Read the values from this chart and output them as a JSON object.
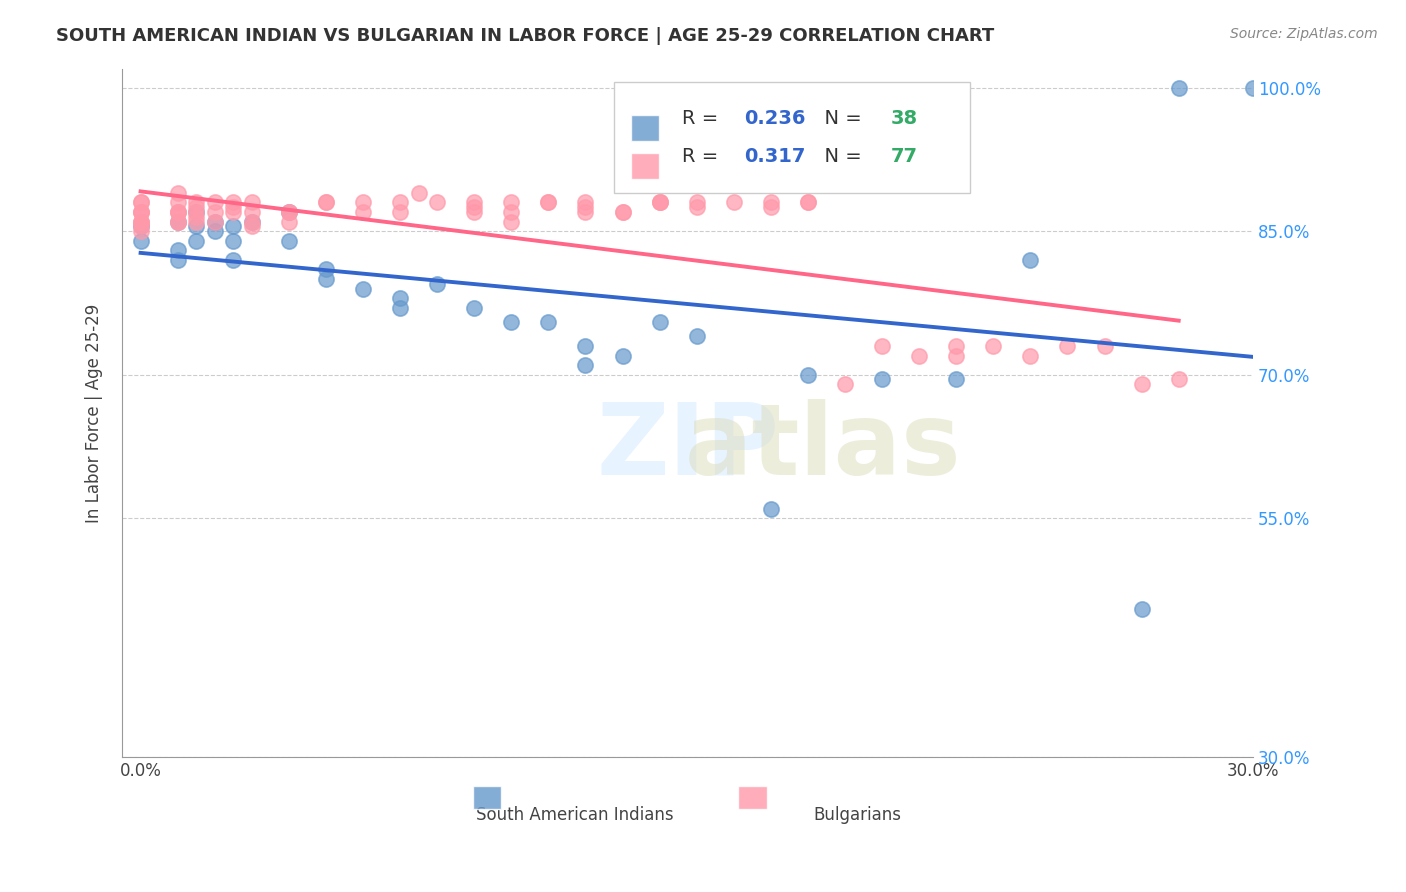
{
  "title": "SOUTH AMERICAN INDIAN VS BULGARIAN IN LABOR FORCE | AGE 25-29 CORRELATION CHART",
  "source": "Source: ZipAtlas.com",
  "xlabel": "",
  "ylabel": "In Labor Force | Age 25-29",
  "xlim": [
    0.0,
    0.3
  ],
  "ylim": [
    0.3,
    1.02
  ],
  "x_ticks": [
    0.0,
    0.3
  ],
  "x_tick_labels": [
    "0.0%",
    "30.0%"
  ],
  "y_ticks": [
    0.85,
    1.0
  ],
  "watermark": "ZIPatlas",
  "legend_blue_R": "0.236",
  "legend_blue_N": "38",
  "legend_pink_R": "0.317",
  "legend_pink_N": "77",
  "blue_color": "#6699CC",
  "pink_color": "#FF99AA",
  "blue_line_color": "#3366CC",
  "pink_line_color": "#FF6688",
  "grid_color": "#CCCCCC",
  "blue_scatter_x": [
    0.0,
    0.0,
    0.01,
    0.01,
    0.01,
    0.015,
    0.015,
    0.015,
    0.02,
    0.02,
    0.025,
    0.025,
    0.025,
    0.03,
    0.04,
    0.04,
    0.05,
    0.05,
    0.06,
    0.07,
    0.07,
    0.08,
    0.09,
    0.1,
    0.11,
    0.12,
    0.12,
    0.13,
    0.14,
    0.15,
    0.17,
    0.18,
    0.2,
    0.22,
    0.24,
    0.27,
    0.28,
    0.3
  ],
  "blue_scatter_y": [
    0.84,
    0.855,
    0.86,
    0.83,
    0.82,
    0.87,
    0.855,
    0.84,
    0.86,
    0.85,
    0.855,
    0.84,
    0.82,
    0.86,
    0.87,
    0.84,
    0.81,
    0.8,
    0.79,
    0.78,
    0.77,
    0.795,
    0.77,
    0.755,
    0.755,
    0.73,
    0.71,
    0.72,
    0.755,
    0.74,
    0.56,
    0.7,
    0.695,
    0.695,
    0.82,
    0.455,
    1.0,
    1.0
  ],
  "pink_scatter_x": [
    0.0,
    0.0,
    0.0,
    0.0,
    0.0,
    0.0,
    0.0,
    0.0,
    0.0,
    0.0,
    0.01,
    0.01,
    0.01,
    0.01,
    0.01,
    0.01,
    0.01,
    0.015,
    0.015,
    0.015,
    0.015,
    0.015,
    0.02,
    0.02,
    0.02,
    0.025,
    0.025,
    0.025,
    0.03,
    0.03,
    0.03,
    0.03,
    0.04,
    0.04,
    0.04,
    0.05,
    0.05,
    0.06,
    0.06,
    0.07,
    0.07,
    0.075,
    0.08,
    0.09,
    0.09,
    0.09,
    0.1,
    0.1,
    0.1,
    0.11,
    0.11,
    0.12,
    0.12,
    0.12,
    0.13,
    0.13,
    0.14,
    0.14,
    0.14,
    0.15,
    0.15,
    0.16,
    0.17,
    0.17,
    0.18,
    0.18,
    0.19,
    0.2,
    0.21,
    0.22,
    0.22,
    0.23,
    0.24,
    0.25,
    0.26,
    0.27,
    0.28
  ],
  "pink_scatter_y": [
    0.88,
    0.87,
    0.86,
    0.87,
    0.86,
    0.85,
    0.855,
    0.86,
    0.87,
    0.88,
    0.86,
    0.87,
    0.87,
    0.86,
    0.87,
    0.88,
    0.89,
    0.88,
    0.875,
    0.87,
    0.86,
    0.865,
    0.88,
    0.87,
    0.86,
    0.88,
    0.875,
    0.87,
    0.88,
    0.87,
    0.86,
    0.855,
    0.87,
    0.87,
    0.86,
    0.88,
    0.88,
    0.87,
    0.88,
    0.87,
    0.88,
    0.89,
    0.88,
    0.88,
    0.875,
    0.87,
    0.86,
    0.87,
    0.88,
    0.88,
    0.88,
    0.87,
    0.88,
    0.875,
    0.87,
    0.87,
    0.88,
    0.88,
    0.88,
    0.88,
    0.875,
    0.88,
    0.88,
    0.875,
    0.88,
    0.88,
    0.69,
    0.73,
    0.72,
    0.73,
    0.72,
    0.73,
    0.72,
    0.73,
    0.73,
    0.69,
    0.695
  ]
}
